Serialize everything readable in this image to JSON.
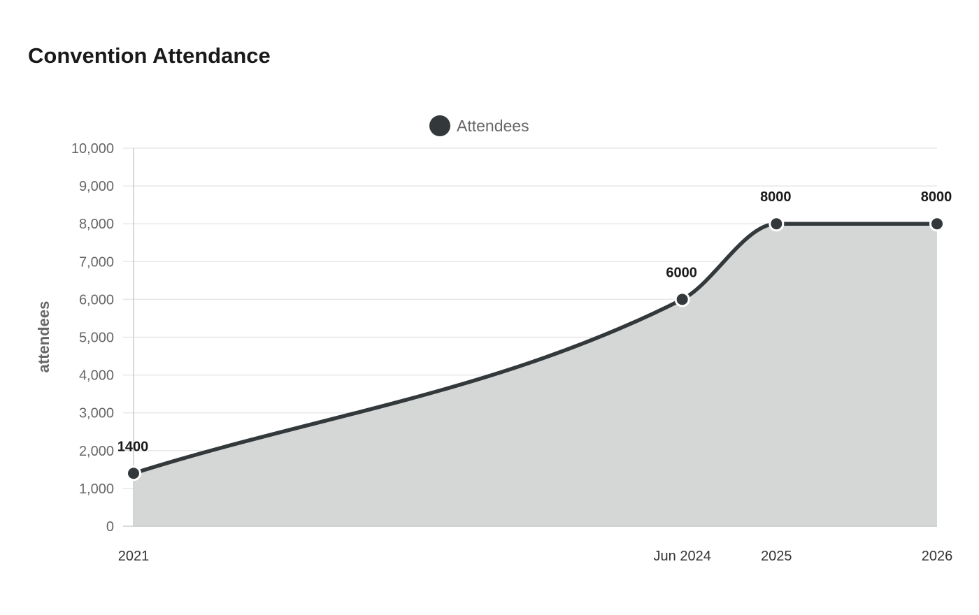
{
  "chart_data": {
    "type": "area",
    "title": "Convention Attendance",
    "xlabel": "",
    "ylabel": "attendees",
    "x": [
      "2021-01-01",
      "2024-06-01",
      "2025-01-01",
      "2026-01-01"
    ],
    "x_tick_labels": [
      "2021",
      "Jun 2024",
      "2025",
      "2026"
    ],
    "ylim": [
      0,
      10000
    ],
    "y_ticks": [
      0,
      1000,
      2000,
      3000,
      4000,
      5000,
      6000,
      7000,
      8000,
      9000,
      10000
    ],
    "y_tick_labels": [
      "0",
      "1,000",
      "2,000",
      "3,000",
      "4,000",
      "5,000",
      "6,000",
      "7,000",
      "8,000",
      "9,000",
      "10,000"
    ],
    "series": [
      {
        "name": "Attendees",
        "values": [
          1400,
          6000,
          8000,
          8000
        ],
        "data_labels": [
          "1400",
          "6000",
          "8000",
          "8000"
        ],
        "color": "#33383b",
        "fill_color": "#d5d7d6"
      }
    ],
    "smooth": true,
    "legend": "top-center",
    "grid": true,
    "colors": {
      "grid": "#e8e8e8",
      "axis": "#cccccc"
    }
  }
}
